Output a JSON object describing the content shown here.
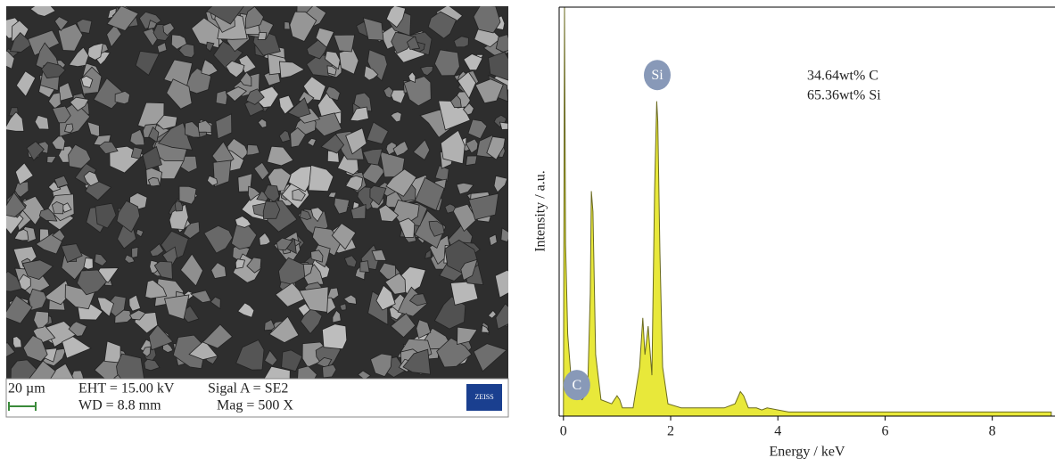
{
  "sem": {
    "scale_bar": "20 µm",
    "eht": "EHT = 15.00 kV",
    "signal": "Sigal A = SE2",
    "wd": "WD = 8.8 mm",
    "mag": "Mag = 500 X",
    "logo": "ZEISS"
  },
  "chart_data": {
    "type": "line",
    "x_label": "Energy / keV",
    "y_label": "Intensity / a.u.",
    "x": [
      0,
      0.02,
      0.04,
      0.08,
      0.15,
      0.25,
      0.35,
      0.45,
      0.5,
      0.52,
      0.55,
      0.6,
      0.7,
      0.9,
      1.0,
      1.05,
      1.1,
      1.3,
      1.42,
      1.48,
      1.52,
      1.58,
      1.65,
      1.7,
      1.74,
      1.76,
      1.8,
      1.85,
      1.95,
      2.2,
      3.0,
      3.2,
      3.3,
      3.36,
      3.45,
      3.6,
      3.7,
      3.8,
      4.2,
      9.1
    ],
    "values": [
      2,
      100,
      42,
      20,
      8,
      5,
      4,
      6,
      30,
      55,
      50,
      15,
      4,
      3,
      5,
      4,
      2,
      2,
      12,
      24,
      15,
      22,
      10,
      55,
      77,
      72,
      40,
      12,
      3,
      2,
      2,
      3,
      6,
      5,
      2,
      2,
      1.5,
      2,
      1,
      1
    ],
    "color": "#e8e83a",
    "xlim": [
      -0.08,
      9.17
    ],
    "ylim": [
      0,
      100
    ],
    "xticks": [
      0,
      2,
      4,
      6,
      8
    ],
    "annotations": [
      {
        "text": "Si",
        "x": 1.75,
        "y": 83.4
      },
      {
        "text": "C",
        "x": 0.25,
        "y": 7.6
      }
    ],
    "composition": [
      "34.64wt% C",
      "65.36wt% Si"
    ]
  }
}
